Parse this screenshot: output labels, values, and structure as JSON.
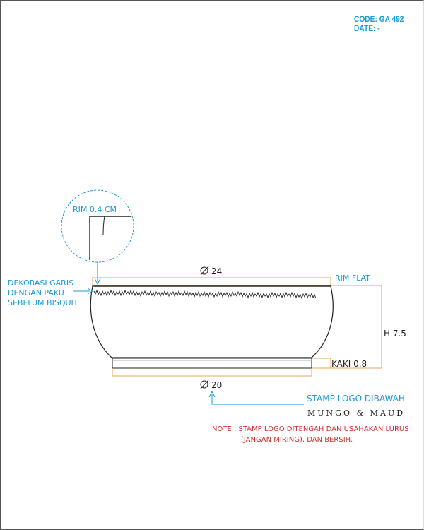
{
  "header": {
    "code": "CODE: GA  492",
    "date": "DATE: -"
  },
  "labels": {
    "rim_detail": "RIM 0.4 CM",
    "diameter_top": "24",
    "diameter_bottom": "20",
    "rim_flat": "RIM FLAT",
    "height": "H 7.5",
    "foot": "KAKI 0.8",
    "decoration_line1": "DEKORASI GARIS",
    "decoration_line2": "DENGAN PAKU",
    "decoration_line3": "SEBELUM BISQUIT",
    "stamp_logo": "STAMP LOGO DIBAWAH",
    "brand": "MUNGO & MAUD",
    "note_line1": "NOTE : STAMP LOGO DITENGAH DAN USAHAKAN LURUS",
    "note_line2": "(JANGAN MIRING), DAN BERSIH."
  },
  "colors": {
    "dimension": "#e8a55a",
    "annotation": "#1a9ad6",
    "note": "#c9302c",
    "outline": "#222222"
  }
}
